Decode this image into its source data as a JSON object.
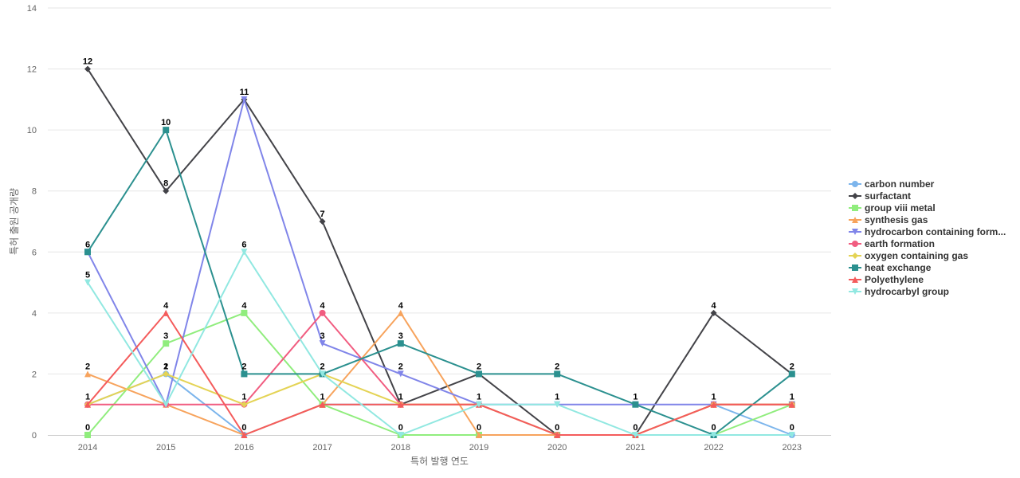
{
  "chart_data": {
    "type": "line",
    "xlabel": "특허 발행 연도",
    "ylabel": "특허 출원 공개량",
    "ylim": [
      0,
      14
    ],
    "y_ticks": [
      0,
      2,
      4,
      6,
      8,
      10,
      12,
      14
    ],
    "x": [
      "2014",
      "2015",
      "2016",
      "2017",
      "2018",
      "2019",
      "2020",
      "2021",
      "2022",
      "2023"
    ],
    "grid": "horizontal",
    "legend_position": "right",
    "series": [
      {
        "name": "carbon number",
        "color": "#7cb5ec",
        "marker": "circle",
        "values": [
          1,
          2,
          0,
          1,
          1,
          1,
          0,
          0,
          1,
          0
        ]
      },
      {
        "name": "surfactant",
        "color": "#434348",
        "marker": "diamond",
        "values": [
          12,
          8,
          11,
          7,
          1,
          2,
          0,
          0,
          4,
          2
        ]
      },
      {
        "name": "group viii metal",
        "color": "#90ed7d",
        "marker": "square",
        "values": [
          0,
          3,
          4,
          1,
          0,
          0,
          0,
          0,
          0,
          1
        ]
      },
      {
        "name": "synthesis gas",
        "color": "#f7a35c",
        "marker": "triangle",
        "values": [
          2,
          1,
          0,
          1,
          4,
          0,
          0,
          0,
          1,
          1
        ]
      },
      {
        "name": "hydrocarbon containing form...",
        "color": "#8085e9",
        "marker": "triangle-down",
        "values": [
          6,
          1,
          11,
          3,
          2,
          1,
          1,
          1,
          1,
          1
        ]
      },
      {
        "name": "earth formation",
        "color": "#f15c80",
        "marker": "circle",
        "values": [
          1,
          1,
          1,
          4,
          1,
          1,
          0,
          0,
          1,
          1
        ]
      },
      {
        "name": "oxygen containing gas",
        "color": "#e4d354",
        "marker": "diamond",
        "values": [
          1,
          2,
          1,
          2,
          1,
          1,
          0,
          0,
          1,
          1
        ]
      },
      {
        "name": "heat exchange",
        "color": "#2b908f",
        "marker": "square",
        "values": [
          6,
          10,
          2,
          2,
          3,
          2,
          2,
          1,
          0,
          2
        ]
      },
      {
        "name": "Polyethylene",
        "color": "#f45b5b",
        "marker": "triangle",
        "values": [
          1,
          4,
          0,
          1,
          1,
          1,
          0,
          0,
          1,
          1
        ]
      },
      {
        "name": "hydrocarbyl group",
        "color": "#91e8e1",
        "marker": "triangle-down",
        "values": [
          5,
          1,
          6,
          2,
          0,
          1,
          1,
          0,
          0,
          0
        ]
      }
    ],
    "data_labels": [
      {
        "x": "2014",
        "series": "surfactant",
        "text": "12"
      },
      {
        "x": "2014",
        "series": "heat exchange",
        "text": "6"
      },
      {
        "x": "2014",
        "series": "hydrocarbyl group",
        "text": "5"
      },
      {
        "x": "2014",
        "series": "synthesis gas",
        "text": "2"
      },
      {
        "x": "2014",
        "series": "carbon number",
        "text": "1"
      },
      {
        "x": "2014",
        "series": "group viii metal",
        "text": "0"
      },
      {
        "x": "2015",
        "series": "heat exchange",
        "text": "10"
      },
      {
        "x": "2015",
        "series": "surfactant",
        "text": "8"
      },
      {
        "x": "2015",
        "series": "Polyethylene",
        "text": "4"
      },
      {
        "x": "2015",
        "series": "group viii metal",
        "text": "3"
      },
      {
        "x": "2015",
        "series": "oxygen containing gas",
        "text": "2"
      },
      {
        "x": "2015",
        "series": "carbon number",
        "text": "1"
      },
      {
        "x": "2016",
        "series": "surfactant",
        "text": "11"
      },
      {
        "x": "2016",
        "series": "hydrocarbyl group",
        "text": "6"
      },
      {
        "x": "2016",
        "series": "group viii metal",
        "text": "4"
      },
      {
        "x": "2016",
        "series": "heat exchange",
        "text": "2"
      },
      {
        "x": "2016",
        "series": "earth formation",
        "text": "1"
      },
      {
        "x": "2016",
        "series": "Polyethylene",
        "text": "0"
      },
      {
        "x": "2017",
        "series": "surfactant",
        "text": "7"
      },
      {
        "x": "2017",
        "series": "earth formation",
        "text": "4"
      },
      {
        "x": "2017",
        "series": "hydrocarbon containing form...",
        "text": "3"
      },
      {
        "x": "2017",
        "series": "heat exchange",
        "text": "2"
      },
      {
        "x": "2017",
        "series": "group viii metal",
        "text": "1"
      },
      {
        "x": "2018",
        "series": "synthesis gas",
        "text": "4"
      },
      {
        "x": "2018",
        "series": "heat exchange",
        "text": "3"
      },
      {
        "x": "2018",
        "series": "hydrocarbon containing form...",
        "text": "2"
      },
      {
        "x": "2018",
        "series": "surfactant",
        "text": "1"
      },
      {
        "x": "2018",
        "series": "group viii metal",
        "text": "0"
      },
      {
        "x": "2019",
        "series": "heat exchange",
        "text": "2"
      },
      {
        "x": "2019",
        "series": "carbon number",
        "text": "1"
      },
      {
        "x": "2019",
        "series": "group viii metal",
        "text": "0"
      },
      {
        "x": "2020",
        "series": "heat exchange",
        "text": "2"
      },
      {
        "x": "2020",
        "series": "hydrocarbyl group",
        "text": "1"
      },
      {
        "x": "2020",
        "series": "carbon number",
        "text": "0"
      },
      {
        "x": "2021",
        "series": "heat exchange",
        "text": "1"
      },
      {
        "x": "2021",
        "series": "carbon number",
        "text": "0"
      },
      {
        "x": "2022",
        "series": "surfactant",
        "text": "4"
      },
      {
        "x": "2022",
        "series": "carbon number",
        "text": "1"
      },
      {
        "x": "2022",
        "series": "heat exchange",
        "text": "0"
      },
      {
        "x": "2023",
        "series": "surfactant",
        "text": "2"
      },
      {
        "x": "2023",
        "series": "group viii metal",
        "text": "1"
      },
      {
        "x": "2023",
        "series": "carbon number",
        "text": "0"
      }
    ]
  }
}
